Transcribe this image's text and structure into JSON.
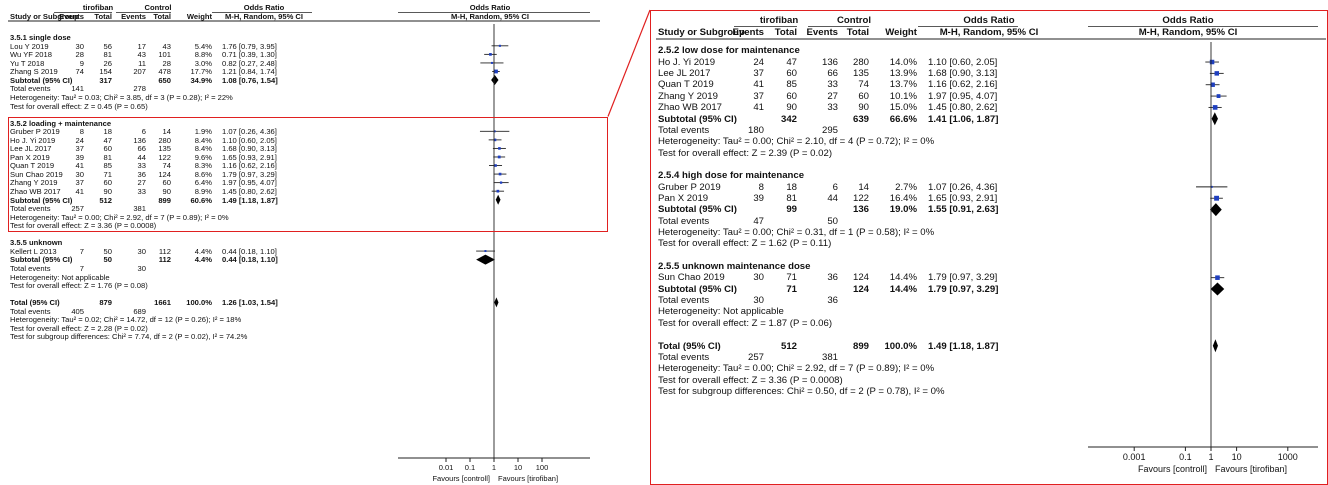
{
  "chart_data": [
    {
      "type": "forest",
      "panel": "left",
      "header": {
        "group_exp": "tirofiban",
        "group_ctrl": "Control",
        "or_title": "Odds Ratio",
        "plot_title": "Odds Ratio",
        "col_study": "Study or Subgroup",
        "col_events": "Events",
        "col_total": "Total",
        "col_weight": "Weight",
        "or_method": "M-H, Random, 95% CI",
        "plot_method": "M-H, Random, 95% CI"
      },
      "axis": {
        "scale": "log",
        "ticks": [
          0.01,
          0.1,
          1,
          10,
          100
        ],
        "tick_labels": [
          "0.01",
          "0.1",
          "1",
          "10",
          "100"
        ],
        "favours_left": "Favours [controll]",
        "favours_right": "Favours [tirofiban]"
      },
      "rows": [
        {
          "kind": "heading",
          "text": "3.5.1 single dose"
        },
        {
          "kind": "study",
          "name": "Lou Y 2019",
          "e1": "30",
          "t1": "56",
          "e2": "17",
          "t2": "43",
          "weight": "5.4%",
          "ci": "1.76 [0.79, 3.95]",
          "or": 1.76,
          "lo": 0.79,
          "hi": 3.95
        },
        {
          "kind": "study",
          "name": "Wu YF 2018",
          "e1": "28",
          "t1": "81",
          "e2": "43",
          "t2": "101",
          "weight": "8.8%",
          "ci": "0.71 [0.39, 1.30]",
          "or": 0.71,
          "lo": 0.39,
          "hi": 1.3
        },
        {
          "kind": "study",
          "name": "Yu T 2018",
          "e1": "9",
          "t1": "26",
          "e2": "11",
          "t2": "28",
          "weight": "3.0%",
          "ci": "0.82 [0.27, 2.48]",
          "or": 0.82,
          "lo": 0.27,
          "hi": 2.48
        },
        {
          "kind": "study",
          "name": "Zhang S 2019",
          "e1": "74",
          "t1": "154",
          "e2": "207",
          "t2": "478",
          "weight": "17.7%",
          "ci": "1.21 [0.84, 1.74]",
          "or": 1.21,
          "lo": 0.84,
          "hi": 1.74
        },
        {
          "kind": "subtotal",
          "name": "Subtotal (95% CI)",
          "t1": "317",
          "t2": "650",
          "weight": "34.9%",
          "ci": "1.08 [0.76, 1.54]",
          "or": 1.08,
          "lo": 0.76,
          "hi": 1.54
        },
        {
          "kind": "events",
          "name": "Total events",
          "e1": "141",
          "e2": "278"
        },
        {
          "kind": "text",
          "text": "Heterogeneity: Tau² = 0.03; Chi² = 3.85, df = 3 (P = 0.28); I² = 22%"
        },
        {
          "kind": "text",
          "text": "Test for overall effect: Z = 0.45 (P = 0.65)"
        },
        {
          "kind": "blank"
        },
        {
          "kind": "heading",
          "text": "3.5.2 loading + maintenance"
        },
        {
          "kind": "study",
          "name": "Gruber P 2019",
          "e1": "8",
          "t1": "18",
          "e2": "6",
          "t2": "14",
          "weight": "1.9%",
          "ci": "1.07 [0.26, 4.36]",
          "or": 1.07,
          "lo": 0.26,
          "hi": 4.36
        },
        {
          "kind": "study",
          "name": "Ho J. Yi 2019",
          "e1": "24",
          "t1": "47",
          "e2": "136",
          "t2": "280",
          "weight": "8.4%",
          "ci": "1.10 [0.60, 2.05]",
          "or": 1.1,
          "lo": 0.6,
          "hi": 2.05
        },
        {
          "kind": "study",
          "name": "Lee JL 2017",
          "e1": "37",
          "t1": "60",
          "e2": "66",
          "t2": "135",
          "weight": "8.4%",
          "ci": "1.68 [0.90, 3.13]",
          "or": 1.68,
          "lo": 0.9,
          "hi": 3.13
        },
        {
          "kind": "study",
          "name": "Pan X 2019",
          "e1": "39",
          "t1": "81",
          "e2": "44",
          "t2": "122",
          "weight": "9.6%",
          "ci": "1.65 [0.93, 2.91]",
          "or": 1.65,
          "lo": 0.93,
          "hi": 2.91
        },
        {
          "kind": "study",
          "name": "Quan T 2019",
          "e1": "41",
          "t1": "85",
          "e2": "33",
          "t2": "74",
          "weight": "8.3%",
          "ci": "1.16 [0.62, 2.16]",
          "or": 1.16,
          "lo": 0.62,
          "hi": 2.16
        },
        {
          "kind": "study",
          "name": "Sun Chao 2019",
          "e1": "30",
          "t1": "71",
          "e2": "36",
          "t2": "124",
          "weight": "8.6%",
          "ci": "1.79 [0.97, 3.29]",
          "or": 1.79,
          "lo": 0.97,
          "hi": 3.29
        },
        {
          "kind": "study",
          "name": "Zhang Y 2019",
          "e1": "37",
          "t1": "60",
          "e2": "27",
          "t2": "60",
          "weight": "6.4%",
          "ci": "1.97 [0.95, 4.07]",
          "or": 1.97,
          "lo": 0.95,
          "hi": 4.07
        },
        {
          "kind": "study",
          "name": "Zhao WB 2017",
          "e1": "41",
          "t1": "90",
          "e2": "33",
          "t2": "90",
          "weight": "8.9%",
          "ci": "1.45 [0.80, 2.62]",
          "or": 1.45,
          "lo": 0.8,
          "hi": 2.62
        },
        {
          "kind": "subtotal",
          "name": "Subtotal (95% CI)",
          "t1": "512",
          "t2": "899",
          "weight": "60.6%",
          "ci": "1.49 [1.18, 1.87]",
          "or": 1.49,
          "lo": 1.18,
          "hi": 1.87
        },
        {
          "kind": "events",
          "name": "Total events",
          "e1": "257",
          "e2": "381"
        },
        {
          "kind": "text",
          "text": "Heterogeneity: Tau² = 0.00; Chi² = 2.92, df = 7 (P = 0.89); I² = 0%"
        },
        {
          "kind": "text",
          "text": "Test for overall effect: Z = 3.36 (P = 0.0008)"
        },
        {
          "kind": "blank"
        },
        {
          "kind": "heading",
          "text": "3.5.5 unknown"
        },
        {
          "kind": "study",
          "name": "Kellert L 2013",
          "e1": "7",
          "t1": "50",
          "e2": "30",
          "t2": "112",
          "weight": "4.4%",
          "ci": "0.44 [0.18, 1.10]",
          "or": 0.44,
          "lo": 0.18,
          "hi": 1.1
        },
        {
          "kind": "subtotal",
          "name": "Subtotal (95% CI)",
          "t1": "50",
          "t2": "112",
          "weight": "4.4%",
          "ci": "0.44 [0.18, 1.10]",
          "or": 0.44,
          "lo": 0.18,
          "hi": 1.1
        },
        {
          "kind": "events",
          "name": "Total events",
          "e1": "7",
          "e2": "30"
        },
        {
          "kind": "text",
          "text": "Heterogeneity: Not applicable"
        },
        {
          "kind": "text",
          "text": "Test for overall effect: Z = 1.76 (P = 0.08)"
        },
        {
          "kind": "blank"
        },
        {
          "kind": "total",
          "name": "Total (95% CI)",
          "t1": "879",
          "t2": "1661",
          "weight": "100.0%",
          "ci": "1.26 [1.03, 1.54]",
          "or": 1.26,
          "lo": 1.03,
          "hi": 1.54
        },
        {
          "kind": "events",
          "name": "Total events",
          "e1": "405",
          "e2": "689"
        },
        {
          "kind": "text",
          "text": "Heterogeneity: Tau² = 0.02; Chi² = 14.72, df = 12 (P = 0.26); I² = 18%"
        },
        {
          "kind": "text",
          "text": "Test for overall effect: Z = 2.28 (P = 0.02)"
        },
        {
          "kind": "text",
          "text": "Test for subgroup differences: Chi² = 7.74, df = 2 (P = 0.02), I² = 74.2%"
        }
      ]
    },
    {
      "type": "forest",
      "panel": "right",
      "header": {
        "group_exp": "tirofiban",
        "group_ctrl": "Control",
        "or_title": "Odds Ratio",
        "plot_title": "Odds Ratio",
        "col_study": "Study or Subgroup",
        "col_events": "Events",
        "col_total": "Total",
        "col_weight": "Weight",
        "or_method": "M-H, Random, 95% CI",
        "plot_method": "M-H, Random, 95% CI"
      },
      "axis": {
        "scale": "log",
        "ticks": [
          0.001,
          0.1,
          1,
          10,
          1000
        ],
        "tick_labels": [
          "0.001",
          "0.1",
          "1",
          "10",
          "1000"
        ],
        "favours_left": "Favours [controll]",
        "favours_right": "Favours [tirofiban]"
      },
      "rows": [
        {
          "kind": "heading",
          "text": "2.5.2 low dose for maintenance"
        },
        {
          "kind": "study",
          "name": "Ho J. Yi 2019",
          "e1": "24",
          "t1": "47",
          "e2": "136",
          "t2": "280",
          "weight": "14.0%",
          "ci": "1.10 [0.60, 2.05]",
          "or": 1.1,
          "lo": 0.6,
          "hi": 2.05
        },
        {
          "kind": "study",
          "name": "Lee JL 2017",
          "e1": "37",
          "t1": "60",
          "e2": "66",
          "t2": "135",
          "weight": "13.9%",
          "ci": "1.68 [0.90, 3.13]",
          "or": 1.68,
          "lo": 0.9,
          "hi": 3.13
        },
        {
          "kind": "study",
          "name": "Quan T 2019",
          "e1": "41",
          "t1": "85",
          "e2": "33",
          "t2": "74",
          "weight": "13.7%",
          "ci": "1.16 [0.62, 2.16]",
          "or": 1.16,
          "lo": 0.62,
          "hi": 2.16
        },
        {
          "kind": "study",
          "name": "Zhang Y 2019",
          "e1": "37",
          "t1": "60",
          "e2": "27",
          "t2": "60",
          "weight": "10.1%",
          "ci": "1.97 [0.95, 4.07]",
          "or": 1.97,
          "lo": 0.95,
          "hi": 4.07
        },
        {
          "kind": "study",
          "name": "Zhao WB 2017",
          "e1": "41",
          "t1": "90",
          "e2": "33",
          "t2": "90",
          "weight": "15.0%",
          "ci": "1.45 [0.80, 2.62]",
          "or": 1.45,
          "lo": 0.8,
          "hi": 2.62
        },
        {
          "kind": "subtotal",
          "name": "Subtotal (95% CI)",
          "t1": "342",
          "t2": "639",
          "weight": "66.6%",
          "ci": "1.41 [1.06, 1.87]",
          "or": 1.41,
          "lo": 1.06,
          "hi": 1.87
        },
        {
          "kind": "events",
          "name": "Total events",
          "e1": "180",
          "e2": "295"
        },
        {
          "kind": "text",
          "text": "Heterogeneity: Tau² = 0.00; Chi² = 2.10, df = 4 (P = 0.72); I² = 0%"
        },
        {
          "kind": "text",
          "text": "Test for overall effect: Z = 2.39 (P = 0.02)"
        },
        {
          "kind": "blank"
        },
        {
          "kind": "heading",
          "text": "2.5.4 high dose for maintenance"
        },
        {
          "kind": "study",
          "name": "Gruber P 2019",
          "e1": "8",
          "t1": "18",
          "e2": "6",
          "t2": "14",
          "weight": "2.7%",
          "ci": "1.07 [0.26, 4.36]",
          "or": 1.07,
          "lo": 0.26,
          "hi": 4.36
        },
        {
          "kind": "study",
          "name": "Pan X 2019",
          "e1": "39",
          "t1": "81",
          "e2": "44",
          "t2": "122",
          "weight": "16.4%",
          "ci": "1.65 [0.93, 2.91]",
          "or": 1.65,
          "lo": 0.93,
          "hi": 2.91
        },
        {
          "kind": "subtotal",
          "name": "Subtotal (95% CI)",
          "t1": "99",
          "t2": "136",
          "weight": "19.0%",
          "ci": "1.55 [0.91, 2.63]",
          "or": 1.55,
          "lo": 0.91,
          "hi": 2.63
        },
        {
          "kind": "events",
          "name": "Total events",
          "e1": "47",
          "e2": "50"
        },
        {
          "kind": "text",
          "text": "Heterogeneity: Tau² = 0.00; Chi² = 0.31, df = 1 (P = 0.58); I² = 0%"
        },
        {
          "kind": "text",
          "text": "Test for overall effect: Z = 1.62 (P = 0.11)"
        },
        {
          "kind": "blank"
        },
        {
          "kind": "heading",
          "text": "2.5.5 unknown maintenance dose"
        },
        {
          "kind": "study",
          "name": "Sun Chao 2019",
          "e1": "30",
          "t1": "71",
          "e2": "36",
          "t2": "124",
          "weight": "14.4%",
          "ci": "1.79 [0.97, 3.29]",
          "or": 1.79,
          "lo": 0.97,
          "hi": 3.29
        },
        {
          "kind": "subtotal",
          "name": "Subtotal (95% CI)",
          "t1": "71",
          "t2": "124",
          "weight": "14.4%",
          "ci": "1.79 [0.97, 3.29]",
          "or": 1.79,
          "lo": 0.97,
          "hi": 3.29
        },
        {
          "kind": "events",
          "name": "Total events",
          "e1": "30",
          "e2": "36"
        },
        {
          "kind": "text",
          "text": "Heterogeneity: Not applicable"
        },
        {
          "kind": "text",
          "text": "Test for overall effect: Z = 1.87 (P = 0.06)"
        },
        {
          "kind": "blank"
        },
        {
          "kind": "total",
          "name": "Total (95% CI)",
          "t1": "512",
          "t2": "899",
          "weight": "100.0%",
          "ci": "1.49 [1.18, 1.87]",
          "or": 1.49,
          "lo": 1.18,
          "hi": 1.87
        },
        {
          "kind": "events",
          "name": "Total events",
          "e1": "257",
          "e2": "381"
        },
        {
          "kind": "text",
          "text": "Heterogeneity: Tau² = 0.00; Chi² = 2.92, df = 7 (P = 0.89); I² = 0%"
        },
        {
          "kind": "text",
          "text": "Test for overall effect: Z = 3.36 (P = 0.0008)"
        },
        {
          "kind": "text",
          "text": "Test for subgroup differences: Chi² = 0.50, df = 2 (P = 0.78), I² = 0%"
        }
      ]
    }
  ],
  "colors": {
    "highlight_border": "#e02020",
    "study_marker": "#1f3fbf",
    "diamond": "#000000"
  }
}
